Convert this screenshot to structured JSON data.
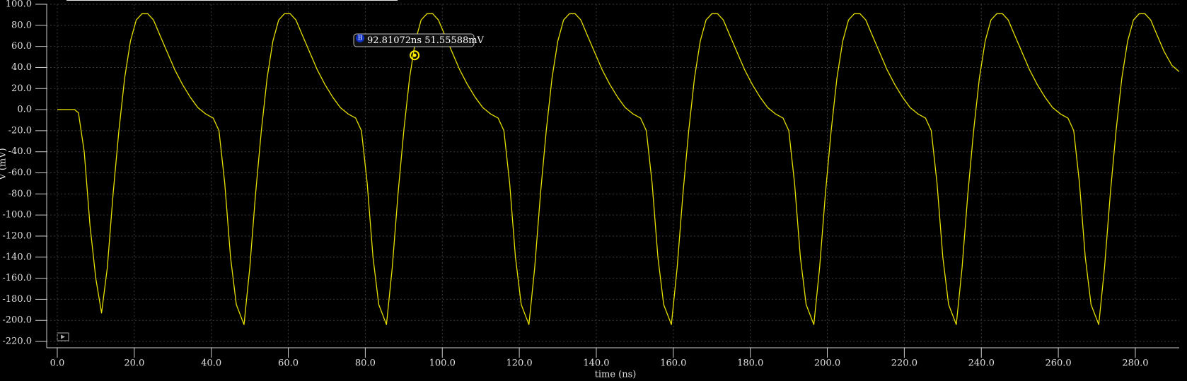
{
  "chart_data": {
    "type": "line",
    "x_label": "time (ns)",
    "y_label": "V (mV)",
    "xlim": [
      -2.75,
      291.4
    ],
    "ylim": [
      -226,
      100
    ],
    "xticks": [
      {
        "value": 0,
        "label": "0.0"
      },
      {
        "value": 20,
        "label": "20.0"
      },
      {
        "value": 40,
        "label": "40.0"
      },
      {
        "value": 60,
        "label": "60.0"
      },
      {
        "value": 80,
        "label": "80.0"
      },
      {
        "value": 100,
        "label": "100.0"
      },
      {
        "value": 120,
        "label": "120.0"
      },
      {
        "value": 140,
        "label": "140.0"
      },
      {
        "value": 160,
        "label": "160.0"
      },
      {
        "value": 180,
        "label": "180.0"
      },
      {
        "value": 200,
        "label": "200.0"
      },
      {
        "value": 220,
        "label": "220.0"
      },
      {
        "value": 240,
        "label": "240.0"
      },
      {
        "value": 260,
        "label": "260.0"
      },
      {
        "value": 280,
        "label": "280.0"
      }
    ],
    "yticks": [
      {
        "value": 100,
        "label": "100.0"
      },
      {
        "value": 80,
        "label": "80.0"
      },
      {
        "value": 60,
        "label": "60.0"
      },
      {
        "value": 40,
        "label": "40.0"
      },
      {
        "value": 20,
        "label": "20.0"
      },
      {
        "value": 0,
        "label": "0.0"
      },
      {
        "value": -20,
        "label": "-20.0"
      },
      {
        "value": -40,
        "label": "-40.0"
      },
      {
        "value": -60,
        "label": "-60.0"
      },
      {
        "value": -80,
        "label": "-80.0"
      },
      {
        "value": -100,
        "label": "-100.0"
      },
      {
        "value": -120,
        "label": "-120.0"
      },
      {
        "value": -140,
        "label": "-140.0"
      },
      {
        "value": -160,
        "label": "-160.0"
      },
      {
        "value": -180,
        "label": "-180.0"
      },
      {
        "value": -200,
        "label": "-200.0"
      },
      {
        "value": -220,
        "label": "-220.0"
      }
    ],
    "grid": true,
    "annotation": {
      "label": "B",
      "text": "92.81072ns 51.55588mV",
      "x": 92.81072,
      "y": 51.55588
    },
    "x": [
      0,
      4.5,
      5.5,
      7,
      8.5,
      10,
      11.5,
      13,
      14.5,
      16,
      17.5,
      19,
      20.5,
      22,
      23.5,
      25,
      26.5,
      28.5,
      30.5,
      32.5,
      34.5,
      36.5,
      38.5,
      40.5,
      42,
      43.5,
      45,
      46.5,
      48.5,
      50,
      51.5,
      53,
      54.5,
      56,
      57.5,
      59,
      60.5,
      62,
      63.5,
      65.5,
      67.5,
      69.5,
      71.5,
      73.5,
      75.5,
      77.5,
      79,
      80.5,
      82,
      83.5,
      85.5,
      87,
      88.5,
      90,
      91.5,
      93,
      94.5,
      96,
      97.5,
      99,
      100.5,
      102.5,
      104.5,
      106.5,
      108.5,
      110.5,
      112.5,
      114.5,
      116,
      117.5,
      119,
      120.5,
      122.5,
      124,
      125.5,
      127,
      128.5,
      130,
      131.5,
      133,
      134.5,
      136,
      137.5,
      139.5,
      141.5,
      143.5,
      145.5,
      147.5,
      149.5,
      151.5,
      153,
      154.5,
      156,
      157.5,
      159.5,
      161,
      162.5,
      164,
      165.5,
      167,
      168.5,
      170,
      171.5,
      173,
      174.5,
      176.5,
      178.5,
      180.5,
      182.5,
      184.5,
      186.5,
      188.5,
      190,
      191.5,
      193,
      194.5,
      196.5,
      198,
      199.5,
      201,
      202.5,
      204,
      205.5,
      207,
      208.5,
      210,
      211.5,
      213.5,
      215.5,
      217.5,
      219.5,
      221.5,
      223.5,
      225.5,
      227,
      228.5,
      230,
      231.5,
      233.5,
      235,
      236.5,
      238,
      239.5,
      241,
      242.5,
      244,
      245.5,
      247,
      248.5,
      250.5,
      252.5,
      254.5,
      256.5,
      258.5,
      260.5,
      262.5,
      264,
      265.5,
      267,
      268.5,
      270.5,
      272,
      273.5,
      275,
      276.5,
      278,
      279.5,
      281,
      282.5,
      284,
      285.5,
      287.5,
      289.5,
      291.4
    ],
    "series": [
      {
        "name": "V",
        "color": "#e6e000",
        "values": [
          0,
          0,
          -3,
          -40,
          -110,
          -160,
          -193,
          -150,
          -80,
          -20,
          30,
          65,
          85,
          91,
          91,
          85,
          72,
          55,
          38,
          24,
          12,
          2,
          -4,
          -8,
          -20,
          -70,
          -140,
          -185,
          -204,
          -150,
          -80,
          -20,
          30,
          65,
          85,
          91,
          91,
          85,
          72,
          55,
          38,
          24,
          12,
          2,
          -4,
          -8,
          -20,
          -70,
          -140,
          -185,
          -204,
          -150,
          -80,
          -20,
          30,
          65,
          85,
          91,
          91,
          85,
          72,
          55,
          38,
          24,
          12,
          2,
          -4,
          -8,
          -20,
          -70,
          -140,
          -185,
          -204,
          -150,
          -80,
          -20,
          30,
          65,
          85,
          91,
          91,
          85,
          72,
          55,
          38,
          24,
          12,
          2,
          -4,
          -8,
          -20,
          -70,
          -140,
          -185,
          -204,
          -150,
          -80,
          -20,
          30,
          65,
          85,
          91,
          91,
          85,
          72,
          55,
          38,
          24,
          12,
          2,
          -4,
          -8,
          -20,
          -70,
          -140,
          -185,
          -204,
          -150,
          -80,
          -20,
          30,
          65,
          85,
          91,
          91,
          85,
          72,
          55,
          38,
          24,
          12,
          2,
          -4,
          -8,
          -20,
          -70,
          -140,
          -185,
          -204,
          -150,
          -80,
          -20,
          30,
          65,
          85,
          91,
          91,
          85,
          72,
          55,
          38,
          24,
          12,
          2,
          -4,
          -8,
          -20,
          -70,
          -140,
          -185,
          -204,
          -150,
          -80,
          -20,
          30,
          65,
          85,
          91,
          91,
          85,
          72,
          55,
          42,
          36
        ]
      }
    ]
  }
}
